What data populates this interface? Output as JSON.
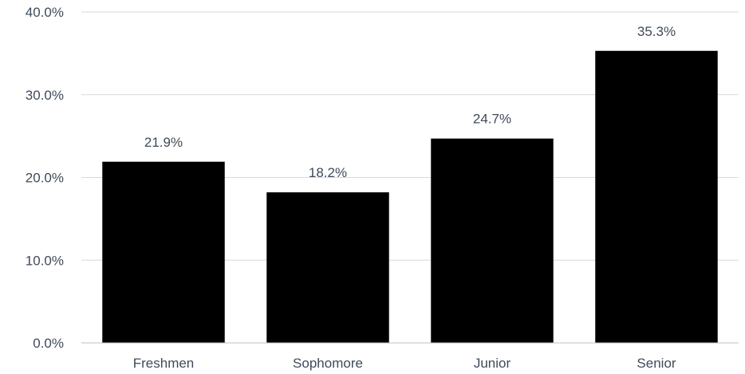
{
  "chart_data": {
    "type": "bar",
    "title": "",
    "xlabel": "",
    "ylabel": "",
    "categories": [
      "Freshmen",
      "Sophomore",
      "Junior",
      "Senior"
    ],
    "values": [
      21.9,
      18.2,
      24.7,
      35.3
    ],
    "data_labels": [
      "21.9%",
      "18.2%",
      "24.7%",
      "35.3%"
    ],
    "ylim": [
      0,
      40
    ],
    "y_ticks": [
      0,
      10,
      20,
      30,
      40
    ],
    "y_tick_labels": [
      "0.0%",
      "10.0%",
      "20.0%",
      "30.0%",
      "40.0%"
    ],
    "grid": true,
    "bar_color": "#000000",
    "label_color": "#404a5a",
    "grid_color": "#d9d9d9"
  }
}
